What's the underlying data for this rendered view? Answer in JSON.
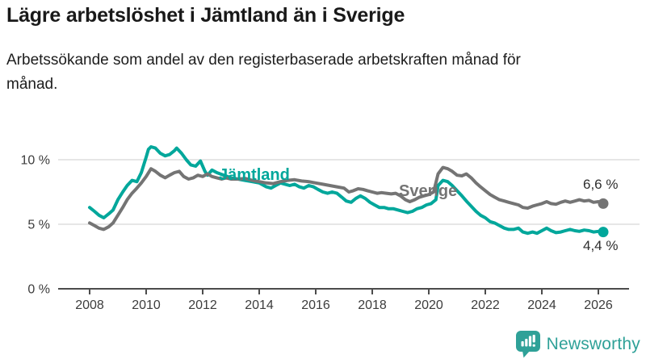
{
  "header": {
    "title": "Lägre arbetslöshet i Jämtland än i Sverige",
    "subtitle": "Arbetssökande som andel av den registerbaserade arbetskraften månad för månad."
  },
  "chart_data": {
    "type": "line",
    "title": "Lägre arbetslöshet i Jämtland än i Sverige",
    "xlabel": "",
    "ylabel": "",
    "xlim": [
      2006.9,
      2027.1
    ],
    "ylim": [
      0,
      12.3
    ],
    "grid": "horizontal-gridlines",
    "legend_position": "inline-labels-on-lines",
    "x_ticks": [
      2008,
      2010,
      2012,
      2014,
      2016,
      2018,
      2020,
      2022,
      2024,
      2026
    ],
    "y_ticks": [
      {
        "value": 0,
        "label": "0 %"
      },
      {
        "value": 5,
        "label": "5 %"
      },
      {
        "value": 10,
        "label": "10 %"
      }
    ],
    "colors": {
      "jamtland": "#00a79b",
      "sverige": "#747474",
      "gridline": "#d8d8d8",
      "axis": "#4c4c4c"
    },
    "series": [
      {
        "name": "Jämtland",
        "color": "#00a79b",
        "end_label": "4,4 %",
        "end_value": 4.4,
        "points": [
          [
            2008.0,
            6.3
          ],
          [
            2008.17,
            6.0
          ],
          [
            2008.33,
            5.7
          ],
          [
            2008.5,
            5.5
          ],
          [
            2008.67,
            5.8
          ],
          [
            2008.83,
            6.1
          ],
          [
            2009.0,
            6.9
          ],
          [
            2009.17,
            7.5
          ],
          [
            2009.33,
            8.0
          ],
          [
            2009.5,
            8.4
          ],
          [
            2009.67,
            8.3
          ],
          [
            2009.83,
            9.0
          ],
          [
            2010.0,
            10.2
          ],
          [
            2010.08,
            10.8
          ],
          [
            2010.17,
            11.0
          ],
          [
            2010.33,
            10.9
          ],
          [
            2010.5,
            10.5
          ],
          [
            2010.67,
            10.3
          ],
          [
            2010.83,
            10.4
          ],
          [
            2011.0,
            10.7
          ],
          [
            2011.08,
            10.9
          ],
          [
            2011.25,
            10.5
          ],
          [
            2011.42,
            10.0
          ],
          [
            2011.58,
            9.6
          ],
          [
            2011.75,
            9.5
          ],
          [
            2011.92,
            9.9
          ],
          [
            2012.08,
            9.1
          ],
          [
            2012.17,
            8.8
          ],
          [
            2012.33,
            9.2
          ],
          [
            2012.5,
            9.0
          ],
          [
            2012.75,
            8.8
          ],
          [
            2013.0,
            8.6
          ],
          [
            2013.25,
            8.5
          ],
          [
            2013.5,
            8.4
          ],
          [
            2013.75,
            8.3
          ],
          [
            2014.0,
            8.2
          ],
          [
            2014.25,
            7.9
          ],
          [
            2014.42,
            7.8
          ],
          [
            2014.58,
            8.0
          ],
          [
            2014.75,
            8.2
          ],
          [
            2014.92,
            8.1
          ],
          [
            2015.08,
            8.0
          ],
          [
            2015.25,
            8.1
          ],
          [
            2015.42,
            7.9
          ],
          [
            2015.58,
            7.8
          ],
          [
            2015.75,
            8.0
          ],
          [
            2015.92,
            7.9
          ],
          [
            2016.08,
            7.7
          ],
          [
            2016.25,
            7.5
          ],
          [
            2016.42,
            7.4
          ],
          [
            2016.58,
            7.5
          ],
          [
            2016.75,
            7.4
          ],
          [
            2016.92,
            7.1
          ],
          [
            2017.08,
            6.8
          ],
          [
            2017.25,
            6.7
          ],
          [
            2017.42,
            7.0
          ],
          [
            2017.58,
            7.2
          ],
          [
            2017.75,
            7.0
          ],
          [
            2017.92,
            6.7
          ],
          [
            2018.08,
            6.5
          ],
          [
            2018.25,
            6.3
          ],
          [
            2018.42,
            6.3
          ],
          [
            2018.58,
            6.2
          ],
          [
            2018.75,
            6.2
          ],
          [
            2018.92,
            6.1
          ],
          [
            2019.08,
            6.0
          ],
          [
            2019.25,
            5.9
          ],
          [
            2019.42,
            6.0
          ],
          [
            2019.58,
            6.2
          ],
          [
            2019.75,
            6.3
          ],
          [
            2019.92,
            6.5
          ],
          [
            2020.08,
            6.6
          ],
          [
            2020.25,
            6.9
          ],
          [
            2020.33,
            8.0
          ],
          [
            2020.5,
            8.4
          ],
          [
            2020.67,
            8.3
          ],
          [
            2020.83,
            8.0
          ],
          [
            2021.0,
            7.6
          ],
          [
            2021.17,
            7.2
          ],
          [
            2021.33,
            6.8
          ],
          [
            2021.5,
            6.4
          ],
          [
            2021.67,
            6.0
          ],
          [
            2021.83,
            5.7
          ],
          [
            2022.0,
            5.5
          ],
          [
            2022.17,
            5.2
          ],
          [
            2022.33,
            5.1
          ],
          [
            2022.5,
            4.9
          ],
          [
            2022.67,
            4.7
          ],
          [
            2022.83,
            4.6
          ],
          [
            2023.0,
            4.6
          ],
          [
            2023.17,
            4.7
          ],
          [
            2023.33,
            4.4
          ],
          [
            2023.5,
            4.3
          ],
          [
            2023.67,
            4.4
          ],
          [
            2023.83,
            4.3
          ],
          [
            2024.0,
            4.5
          ],
          [
            2024.17,
            4.7
          ],
          [
            2024.33,
            4.5
          ],
          [
            2024.5,
            4.35
          ],
          [
            2024.67,
            4.4
          ],
          [
            2024.83,
            4.5
          ],
          [
            2025.0,
            4.6
          ],
          [
            2025.17,
            4.5
          ],
          [
            2025.33,
            4.45
          ],
          [
            2025.5,
            4.55
          ],
          [
            2025.67,
            4.5
          ],
          [
            2025.83,
            4.4
          ],
          [
            2026.0,
            4.45
          ],
          [
            2026.17,
            4.4
          ]
        ]
      },
      {
        "name": "Sverige",
        "color": "#747474",
        "end_label": "6,6 %",
        "end_value": 6.6,
        "points": [
          [
            2008.0,
            5.1
          ],
          [
            2008.17,
            4.9
          ],
          [
            2008.33,
            4.7
          ],
          [
            2008.5,
            4.6
          ],
          [
            2008.67,
            4.8
          ],
          [
            2008.83,
            5.1
          ],
          [
            2009.0,
            5.7
          ],
          [
            2009.17,
            6.3
          ],
          [
            2009.33,
            6.9
          ],
          [
            2009.5,
            7.4
          ],
          [
            2009.67,
            7.8
          ],
          [
            2009.83,
            8.2
          ],
          [
            2010.0,
            8.7
          ],
          [
            2010.17,
            9.3
          ],
          [
            2010.33,
            9.1
          ],
          [
            2010.5,
            8.8
          ],
          [
            2010.67,
            8.6
          ],
          [
            2010.83,
            8.8
          ],
          [
            2011.0,
            9.0
          ],
          [
            2011.17,
            9.1
          ],
          [
            2011.33,
            8.7
          ],
          [
            2011.5,
            8.5
          ],
          [
            2011.67,
            8.6
          ],
          [
            2011.83,
            8.8
          ],
          [
            2012.0,
            8.7
          ],
          [
            2012.17,
            8.9
          ],
          [
            2012.33,
            8.7
          ],
          [
            2012.5,
            8.6
          ],
          [
            2012.67,
            8.5
          ],
          [
            2012.83,
            8.6
          ],
          [
            2013.0,
            8.5
          ],
          [
            2013.25,
            8.5
          ],
          [
            2013.5,
            8.55
          ],
          [
            2013.75,
            8.4
          ],
          [
            2014.0,
            8.3
          ],
          [
            2014.25,
            8.2
          ],
          [
            2014.5,
            8.15
          ],
          [
            2014.75,
            8.3
          ],
          [
            2015.0,
            8.4
          ],
          [
            2015.25,
            8.45
          ],
          [
            2015.5,
            8.35
          ],
          [
            2015.75,
            8.3
          ],
          [
            2016.0,
            8.2
          ],
          [
            2016.25,
            8.1
          ],
          [
            2016.5,
            8.0
          ],
          [
            2016.75,
            7.9
          ],
          [
            2017.0,
            7.8
          ],
          [
            2017.17,
            7.5
          ],
          [
            2017.33,
            7.6
          ],
          [
            2017.5,
            7.75
          ],
          [
            2017.67,
            7.7
          ],
          [
            2017.83,
            7.6
          ],
          [
            2018.0,
            7.5
          ],
          [
            2018.17,
            7.4
          ],
          [
            2018.33,
            7.45
          ],
          [
            2018.5,
            7.4
          ],
          [
            2018.67,
            7.35
          ],
          [
            2018.83,
            7.4
          ],
          [
            2019.0,
            7.2
          ],
          [
            2019.17,
            6.9
          ],
          [
            2019.33,
            6.75
          ],
          [
            2019.5,
            6.9
          ],
          [
            2019.67,
            7.1
          ],
          [
            2019.83,
            7.2
          ],
          [
            2020.0,
            7.3
          ],
          [
            2020.17,
            7.5
          ],
          [
            2020.33,
            8.9
          ],
          [
            2020.5,
            9.4
          ],
          [
            2020.67,
            9.3
          ],
          [
            2020.83,
            9.1
          ],
          [
            2021.0,
            8.8
          ],
          [
            2021.17,
            8.75
          ],
          [
            2021.33,
            8.9
          ],
          [
            2021.5,
            8.6
          ],
          [
            2021.67,
            8.2
          ],
          [
            2021.83,
            7.9
          ],
          [
            2022.0,
            7.6
          ],
          [
            2022.17,
            7.3
          ],
          [
            2022.33,
            7.1
          ],
          [
            2022.5,
            6.9
          ],
          [
            2022.67,
            6.8
          ],
          [
            2022.83,
            6.7
          ],
          [
            2023.0,
            6.6
          ],
          [
            2023.17,
            6.5
          ],
          [
            2023.33,
            6.3
          ],
          [
            2023.5,
            6.25
          ],
          [
            2023.67,
            6.4
          ],
          [
            2023.83,
            6.5
          ],
          [
            2024.0,
            6.6
          ],
          [
            2024.17,
            6.75
          ],
          [
            2024.33,
            6.6
          ],
          [
            2024.5,
            6.55
          ],
          [
            2024.67,
            6.7
          ],
          [
            2024.83,
            6.8
          ],
          [
            2025.0,
            6.7
          ],
          [
            2025.17,
            6.8
          ],
          [
            2025.33,
            6.9
          ],
          [
            2025.5,
            6.8
          ],
          [
            2025.67,
            6.85
          ],
          [
            2025.83,
            6.7
          ],
          [
            2026.0,
            6.75
          ],
          [
            2026.17,
            6.6
          ]
        ]
      }
    ]
  },
  "footer": {
    "brand": "Newsworthy",
    "brand_color": "#2fa198"
  }
}
